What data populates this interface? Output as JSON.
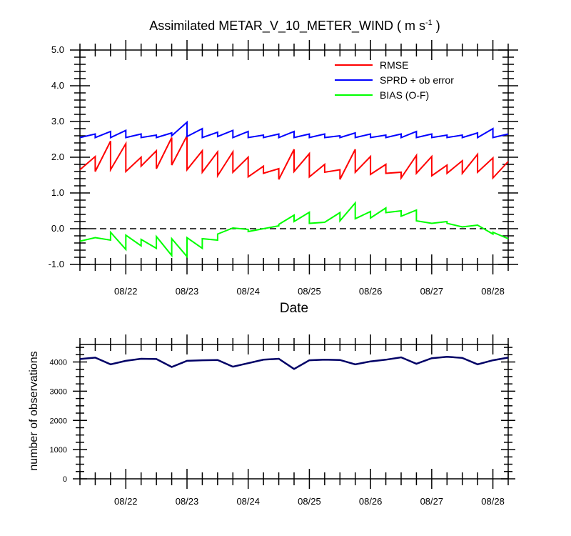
{
  "chart_data": [
    {
      "type": "line",
      "title": "Assimilated METAR_V_10_METER_WIND ( m s",
      "title_unit_exponent": "-1",
      "title_close": " )",
      "xlabel": "Date",
      "ylabel": "",
      "ylim": [
        -1.0,
        5.0
      ],
      "yticks": [
        "-1.0",
        "0.0",
        "1.0",
        "2.0",
        "3.0",
        "4.0",
        "5.0"
      ],
      "xlim": [
        21.25,
        28.25
      ],
      "xticks": [
        22,
        23,
        24,
        25,
        26,
        27,
        28
      ],
      "xtick_labels": [
        "08/22",
        "08/23",
        "08/24",
        "08/25",
        "08/26",
        "08/27",
        "08/28"
      ],
      "zero_line": "dashed",
      "legend_position": "top-right",
      "series": [
        {
          "name": "RMSE",
          "color": "#ff0000",
          "x": [
            21.25,
            21.5,
            21.5,
            21.75,
            21.75,
            22.0,
            22.0,
            22.25,
            22.25,
            22.5,
            22.5,
            22.75,
            22.75,
            23.0,
            23.0,
            23.25,
            23.25,
            23.5,
            23.5,
            23.75,
            23.75,
            24.0,
            24.0,
            24.25,
            24.25,
            24.5,
            24.5,
            24.75,
            24.75,
            25.0,
            25.0,
            25.25,
            25.25,
            25.5,
            25.5,
            25.75,
            25.75,
            26.0,
            26.0,
            26.25,
            26.25,
            26.5,
            26.5,
            26.75,
            26.75,
            27.0,
            27.0,
            27.25,
            27.25,
            27.5,
            27.5,
            27.75,
            27.75,
            28.0,
            28.0,
            28.25
          ],
          "values": [
            1.65,
            2.02,
            1.6,
            2.45,
            1.65,
            2.38,
            1.6,
            2.0,
            1.75,
            2.18,
            1.68,
            2.55,
            1.78,
            2.6,
            1.65,
            2.18,
            1.58,
            2.15,
            1.48,
            2.15,
            1.58,
            2.0,
            1.45,
            1.75,
            1.55,
            1.68,
            1.38,
            2.22,
            1.6,
            2.1,
            1.45,
            1.8,
            1.58,
            1.65,
            1.38,
            2.22,
            1.58,
            2.02,
            1.52,
            1.8,
            1.55,
            1.58,
            1.42,
            2.05,
            1.55,
            2.02,
            1.48,
            1.78,
            1.55,
            1.9,
            1.55,
            2.08,
            1.58,
            1.98,
            1.42,
            1.88
          ]
        },
        {
          "name": "SPRD + ob error",
          "color": "#0000ff",
          "x": [
            21.25,
            21.5,
            21.5,
            21.75,
            21.75,
            22.0,
            22.0,
            22.25,
            22.25,
            22.5,
            22.5,
            22.75,
            22.75,
            23.0,
            23.0,
            23.25,
            23.25,
            23.5,
            23.5,
            23.75,
            23.75,
            24.0,
            24.0,
            24.25,
            24.25,
            24.5,
            24.5,
            24.75,
            24.75,
            25.0,
            25.0,
            25.25,
            25.25,
            25.5,
            25.5,
            25.75,
            25.75,
            26.0,
            26.0,
            26.25,
            26.25,
            26.5,
            26.5,
            26.75,
            26.75,
            27.0,
            27.0,
            27.25,
            27.25,
            27.5,
            27.5,
            27.75,
            27.75,
            28.0,
            28.0,
            28.25
          ],
          "values": [
            2.55,
            2.65,
            2.55,
            2.72,
            2.55,
            2.75,
            2.55,
            2.65,
            2.55,
            2.62,
            2.55,
            2.68,
            2.6,
            2.98,
            2.58,
            2.8,
            2.55,
            2.7,
            2.58,
            2.75,
            2.55,
            2.72,
            2.55,
            2.62,
            2.55,
            2.65,
            2.55,
            2.72,
            2.55,
            2.65,
            2.55,
            2.65,
            2.55,
            2.6,
            2.55,
            2.68,
            2.55,
            2.65,
            2.55,
            2.62,
            2.55,
            2.65,
            2.55,
            2.72,
            2.55,
            2.65,
            2.55,
            2.62,
            2.55,
            2.62,
            2.55,
            2.68,
            2.55,
            2.8,
            2.55,
            2.65
          ]
        },
        {
          "name": "BIAS (O-F)",
          "color": "#00ff00",
          "x": [
            21.25,
            21.5,
            21.75,
            21.75,
            22.0,
            22.0,
            22.25,
            22.25,
            22.5,
            22.5,
            22.75,
            22.75,
            23.0,
            23.0,
            23.25,
            23.25,
            23.5,
            23.5,
            23.75,
            24.0,
            24.0,
            24.25,
            24.5,
            24.5,
            24.75,
            24.75,
            25.0,
            25.0,
            25.25,
            25.5,
            25.5,
            25.75,
            25.75,
            26.0,
            26.0,
            26.25,
            26.25,
            26.5,
            26.5,
            26.75,
            26.75,
            27.0,
            27.25,
            27.25,
            27.5,
            27.75,
            28.0,
            28.0,
            28.25
          ],
          "values": [
            -0.35,
            -0.25,
            -0.32,
            -0.1,
            -0.58,
            -0.18,
            -0.48,
            -0.3,
            -0.55,
            -0.22,
            -0.75,
            -0.28,
            -0.78,
            -0.25,
            -0.55,
            -0.28,
            -0.32,
            -0.15,
            0.02,
            -0.02,
            -0.08,
            0.0,
            0.08,
            0.12,
            0.38,
            0.2,
            0.46,
            0.15,
            0.18,
            0.45,
            0.22,
            0.72,
            0.28,
            0.48,
            0.3,
            0.58,
            0.45,
            0.5,
            0.35,
            0.52,
            0.22,
            0.15,
            0.2,
            0.15,
            0.05,
            0.1,
            -0.15,
            -0.1,
            -0.28
          ]
        }
      ]
    },
    {
      "type": "line",
      "title": "",
      "xlabel": "",
      "ylabel": "number of observations",
      "ylim": [
        0,
        4600
      ],
      "yticks": [
        "0",
        "1000",
        "2000",
        "3000",
        "4000"
      ],
      "xlim": [
        21.25,
        28.25
      ],
      "xticks": [
        22,
        23,
        24,
        25,
        26,
        27,
        28
      ],
      "xtick_labels": [
        "08/22",
        "08/23",
        "08/24",
        "08/25",
        "08/26",
        "08/27",
        "08/28"
      ],
      "series": [
        {
          "name": "number of observations",
          "color": "#000066",
          "x": [
            21.25,
            21.5,
            21.75,
            22.0,
            22.25,
            22.5,
            22.75,
            23.0,
            23.25,
            23.5,
            23.75,
            24.0,
            24.25,
            24.5,
            24.75,
            25.0,
            25.25,
            25.5,
            25.75,
            26.0,
            26.25,
            26.5,
            26.75,
            27.0,
            27.25,
            27.5,
            27.75,
            28.0,
            28.25
          ],
          "values": [
            4100,
            4150,
            3920,
            4040,
            4110,
            4100,
            3830,
            4040,
            4060,
            4070,
            3840,
            3960,
            4080,
            4110,
            3760,
            4060,
            4080,
            4070,
            3920,
            4020,
            4080,
            4160,
            3940,
            4130,
            4180,
            4140,
            3920,
            4060,
            4150
          ]
        }
      ]
    }
  ]
}
